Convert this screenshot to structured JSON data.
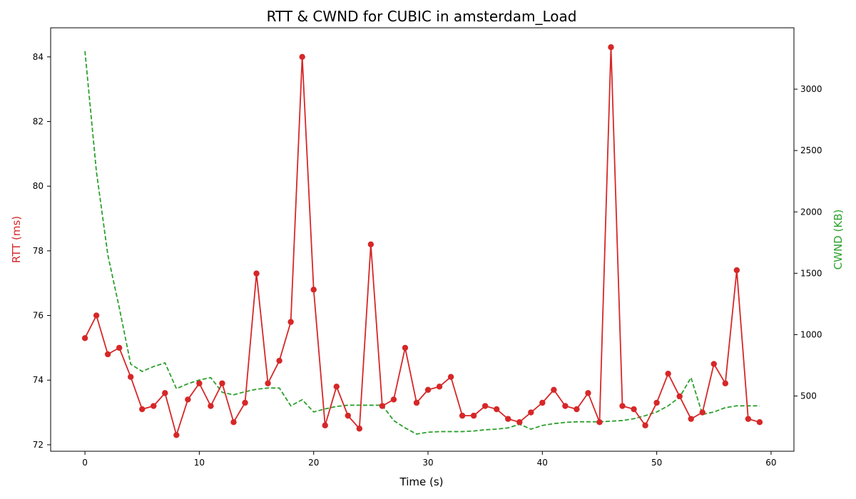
{
  "chart_data": {
    "type": "line",
    "title": "RTT & CWND for CUBIC in amsterdam_Load",
    "xlabel": "Time (s)",
    "ylabel_left": "RTT (ms)",
    "ylabel_right": "CWND (KB)",
    "xlim": [
      -3,
      62
    ],
    "ylim_left": [
      71.8,
      84.9
    ],
    "ylim_right": [
      50,
      3500
    ],
    "xticks": [
      0,
      10,
      20,
      30,
      40,
      50,
      60
    ],
    "yticks_left": [
      72,
      74,
      76,
      78,
      80,
      82,
      84
    ],
    "yticks_right": [
      500,
      1000,
      1500,
      2000,
      2500,
      3000
    ],
    "grid": false,
    "colors": {
      "rtt": "#d62728",
      "cwnd": "#2ca02c"
    },
    "x": [
      0,
      1,
      2,
      3,
      4,
      5,
      6,
      7,
      8,
      9,
      10,
      11,
      12,
      13,
      14,
      15,
      16,
      17,
      18,
      19,
      20,
      21,
      22,
      23,
      24,
      25,
      26,
      27,
      28,
      29,
      30,
      31,
      32,
      33,
      34,
      35,
      36,
      37,
      38,
      39,
      40,
      41,
      42,
      43,
      44,
      45,
      46,
      47,
      48,
      49,
      50,
      51,
      52,
      53,
      54,
      55,
      56,
      57,
      58,
      59
    ],
    "series": [
      {
        "axis": "left",
        "style": "solid-markers",
        "values": [
          75.3,
          76.0,
          74.8,
          75.0,
          74.1,
          73.1,
          73.2,
          73.6,
          72.3,
          73.4,
          73.9,
          73.2,
          73.9,
          72.7,
          73.3,
          77.3,
          73.9,
          74.6,
          75.8,
          84.0,
          76.8,
          72.6,
          73.8,
          72.9,
          72.5,
          78.2,
          73.2,
          73.4,
          75.0,
          73.3,
          73.7,
          73.8,
          74.1,
          72.9,
          72.9,
          73.2,
          73.1,
          72.8,
          72.7,
          73.0,
          73.3,
          73.7,
          73.2,
          73.1,
          73.6,
          72.7,
          84.3,
          73.2,
          73.1,
          72.6,
          73.3,
          74.2,
          73.5,
          72.8,
          73.0,
          74.5,
          73.9,
          77.4,
          72.8,
          72.7
        ]
      },
      {
        "axis": "right",
        "style": "dashed",
        "values": [
          3310,
          2330,
          1650,
          1220,
          760,
          700,
          740,
          770,
          560,
          600,
          630,
          650,
          530,
          510,
          535,
          555,
          565,
          565,
          420,
          470,
          370,
          395,
          415,
          425,
          425,
          425,
          425,
          300,
          240,
          190,
          205,
          210,
          210,
          210,
          215,
          225,
          230,
          240,
          270,
          230,
          260,
          275,
          285,
          290,
          290,
          290,
          295,
          300,
          315,
          340,
          370,
          420,
          490,
          650,
          350,
          370,
          405,
          420,
          420,
          420
        ]
      }
    ]
  }
}
